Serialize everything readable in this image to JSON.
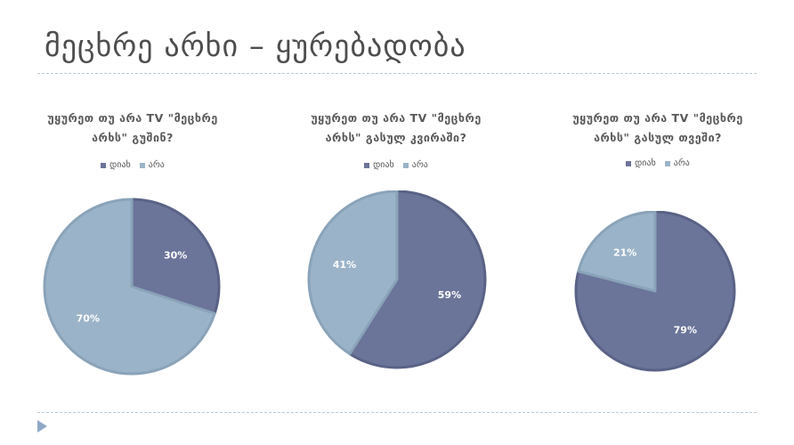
{
  "slide": {
    "title": "მეცხრე არხი – ყურებადობა"
  },
  "colors": {
    "yes": "#6b7499",
    "no": "#9ab3c8",
    "rule": "#b9c8d6"
  },
  "chart_data": [
    {
      "type": "pie",
      "title": "უყურეთ თუ არა TV \"მეცხრე არხს\"  გუშინ?",
      "legend_position": "top",
      "categories": [
        "დიახ",
        "არა"
      ],
      "values": [
        30,
        70
      ],
      "labels": [
        "30%",
        "70%"
      ]
    },
    {
      "type": "pie",
      "title": "უყურეთ თუ არა TV \"მეცხრე არხს\" გასულ კვირაში?",
      "legend_position": "top",
      "categories": [
        "დიახ",
        "არა"
      ],
      "values": [
        59,
        41
      ],
      "labels": [
        "59%",
        "41%"
      ]
    },
    {
      "type": "pie",
      "title": "უყურეთ თუ არა TV \"მეცხრე არხს\" გასულ თვეში?",
      "legend_position": "top",
      "categories": [
        "დიახ",
        "არა"
      ],
      "values": [
        79,
        21
      ],
      "labels": [
        "79%",
        "21%"
      ]
    }
  ]
}
